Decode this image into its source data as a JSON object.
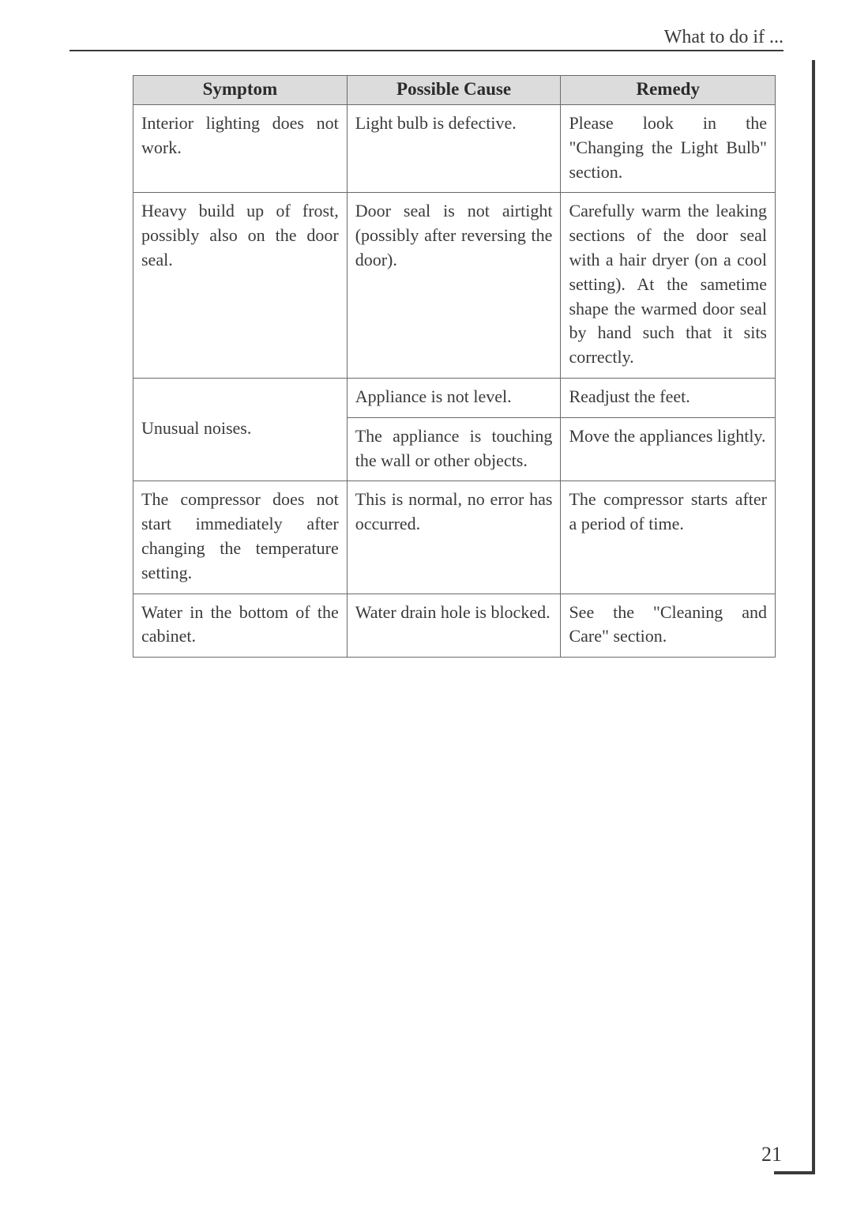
{
  "header": "What to do if ...",
  "page_number": "21",
  "table": {
    "columns": [
      "Symptom",
      "Possible Cause",
      "Remedy"
    ],
    "rows": [
      {
        "symptom": "Interior lighting does not work.",
        "cause": "Light bulb is defective.",
        "remedy": "Please look in the \"Changing the Light Bulb\" section."
      },
      {
        "symptom": "Heavy build up of frost, possibly also on the door seal.",
        "cause": "Door seal is not airtight (possibly after reversing the door).",
        "remedy": "Carefully warm the leaking sections of the door seal with a hair dryer (on a cool setting). At the sametime shape the warmed door seal by hand such that it sits correctly."
      },
      {
        "symptom": "Unusual noises.",
        "causeA": "Appliance is not level.",
        "remedyA": "Readjust the feet.",
        "causeB": "The appliance is touching the wall or other objects.",
        "remedyB": "Move the appliances lightly."
      },
      {
        "symptom": "The compressor does not start immediately after changing the temperature setting.",
        "cause": "This is normal, no error has occurred.",
        "remedy": "The compressor starts after a period of time."
      },
      {
        "symptom": "Water in the bottom of the cabinet.",
        "cause": "Water drain hole is blocked.",
        "remedy": "See the \"Cleaning and Care\" section."
      }
    ]
  },
  "style": {
    "background": "#ffffff",
    "border_color": "#6a6a6a",
    "header_bg": "#dcdcdc",
    "text_color": "#3a3a3a",
    "font_family": "Georgia, serif",
    "header_fontsize": 23,
    "cell_fontsize": 22,
    "page_num_fontsize": 26
  }
}
